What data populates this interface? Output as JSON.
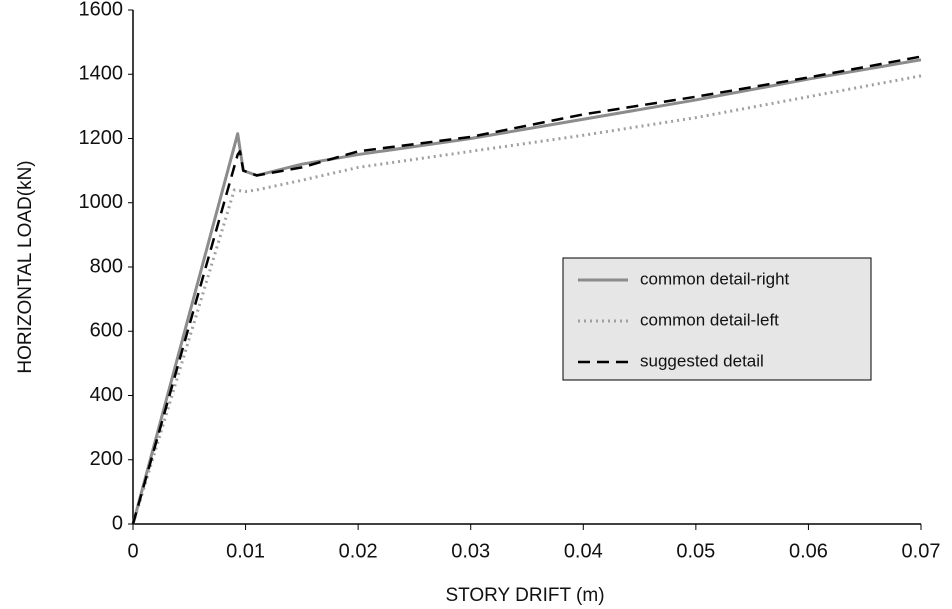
{
  "chart_data": {
    "type": "line",
    "xlabel": "STORY DRIFT (m)",
    "ylabel": "HORIZONTAL LOAD(kN)",
    "xlim": [
      0,
      0.07
    ],
    "xticks": [
      0,
      0.01,
      0.02,
      0.03,
      0.04,
      0.05,
      0.06,
      0.07
    ],
    "ylim": [
      0,
      1600
    ],
    "yticks": [
      0,
      200,
      400,
      600,
      800,
      1000,
      1200,
      1400,
      1600
    ],
    "grid": false,
    "series": [
      {
        "name": "common detail-right",
        "color": "#8c8c8c",
        "dash": "solid",
        "x": [
          0,
          0.0093,
          0.0098,
          0.011,
          0.015,
          0.02,
          0.03,
          0.04,
          0.05,
          0.06,
          0.07
        ],
        "values": [
          0,
          1215,
          1100,
          1085,
          1120,
          1150,
          1200,
          1260,
          1320,
          1385,
          1445
        ]
      },
      {
        "name": "common detail-left",
        "color": "#a0a0a0",
        "dash": "dotted",
        "x": [
          0,
          0.009,
          0.01,
          0.011,
          0.015,
          0.02,
          0.03,
          0.04,
          0.05,
          0.06,
          0.07
        ],
        "values": [
          0,
          1040,
          1035,
          1040,
          1070,
          1110,
          1160,
          1210,
          1265,
          1330,
          1395
        ]
      },
      {
        "name": "suggested detail",
        "color": "#000000",
        "dash": "dashed",
        "x": [
          0,
          0.0093,
          0.0095,
          0.0098,
          0.011,
          0.015,
          0.02,
          0.03,
          0.04,
          0.05,
          0.06,
          0.07
        ],
        "values": [
          0,
          1150,
          1160,
          1100,
          1085,
          1110,
          1160,
          1205,
          1275,
          1330,
          1390,
          1455
        ]
      }
    ]
  }
}
